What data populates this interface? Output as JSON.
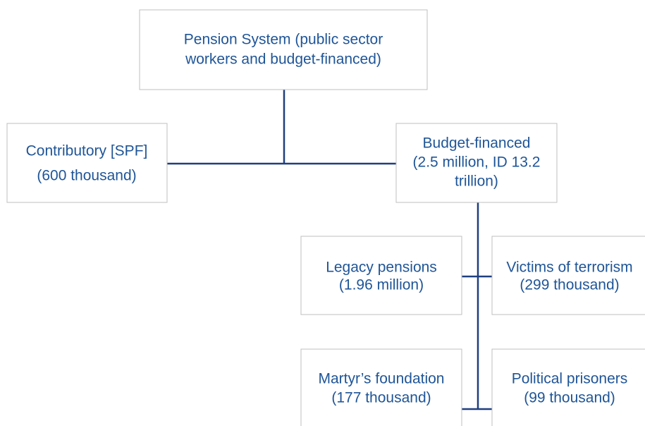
{
  "nodes": [
    {
      "lines": [
        "Pension System (public sector",
        "workers and budget-financed)"
      ]
    },
    {
      "lines": [
        "Contributory [SPF]",
        "(600 thousand)"
      ]
    },
    {
      "lines": [
        "Budget-financed",
        "(2.5 million, ID 13.2",
        "trillion)"
      ]
    },
    {
      "lines": [
        "Legacy pensions",
        "(1.96 million)"
      ]
    },
    {
      "lines": [
        "Victims of terrorism",
        "(299 thousand)"
      ]
    },
    {
      "lines": [
        "Martyr’s foundation",
        "(177 thousand)"
      ]
    },
    {
      "lines": [
        "Political prisoners",
        "(99 thousand)"
      ]
    }
  ]
}
